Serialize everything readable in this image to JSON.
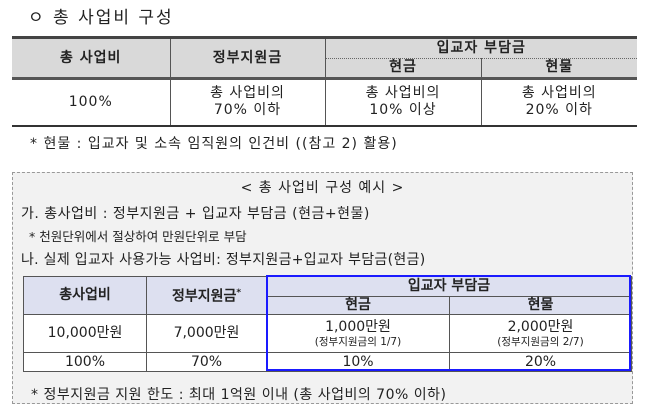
{
  "title": "ㅇ 총 사업비 구성",
  "table1": {
    "headers": {
      "total": "총 사업비",
      "gov": "정부지원금",
      "burden": "입교자 부담금",
      "cash": "현금",
      "inkind": "현물"
    },
    "row": {
      "total": "100%",
      "gov": [
        "총 사업비의",
        "70% 이하"
      ],
      "cash": [
        "총 사업비의",
        "10% 이상"
      ],
      "inkind": [
        "총 사업비의",
        "20% 이하"
      ]
    }
  },
  "note1": "* 현물 : 입교자 및 소속 임직원의 인건비 ((참고 2) 활용)",
  "example": {
    "title": "< 총 사업비 구성 예시 >",
    "lineA": "가. 총사업비 : 정부지원금 + 입교자 부담금 (현금+현물)",
    "lineA_note": "* 천원단위에서 절상하여 만원단위로 부담",
    "lineB": "나. 실제 입교자 사용가능 사업비: 정부지원금+입교자 부담금(현금)",
    "table": {
      "headers": {
        "total": "총사업비",
        "gov": "정부지원금",
        "gov_mark": "*",
        "burden": "입교자 부담금",
        "cash": "현금",
        "inkind": "현물"
      },
      "amounts": {
        "total": "10,000만원",
        "gov": "7,000만원",
        "cash": "1,000만원",
        "cash_note": "(정부지원금의 1/7)",
        "inkind": "2,000만원",
        "inkind_note": "(정부지원금의 2/7)"
      },
      "percents": {
        "total": "100%",
        "gov": "70%",
        "cash": "10%",
        "inkind": "20%"
      }
    },
    "note": "* 정부지원금 지원 한도 : 최대 1억원 이내 (총 사업비의 70% 이하)",
    "highlight_color": "#1a1aff"
  }
}
